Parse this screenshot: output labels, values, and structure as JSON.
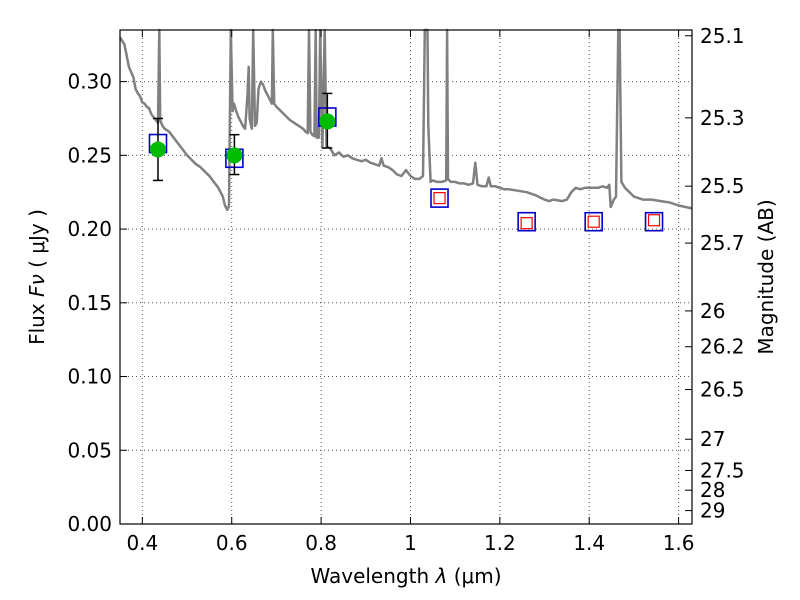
{
  "chart_data": {
    "type": "line",
    "xlabel": "Wavelength",
    "xlabel_symbol": "λ",
    "xlabel_unit": "(μm)",
    "ylabel": "Flux",
    "ylabel_symbol": "Fν",
    "ylabel_unit": "( μJy )",
    "y2label": "Magnitude (AB)",
    "xlim": [
      0.35,
      1.63
    ],
    "ylim": [
      0.0,
      0.335
    ],
    "x_ticks": [
      0.4,
      0.6,
      0.8,
      1.0,
      1.2,
      1.4,
      1.6
    ],
    "x_tick_labels": [
      "0.4",
      "0.6",
      "0.8",
      "1",
      "1.2",
      "1.4",
      "1.6"
    ],
    "y_ticks": [
      0.0,
      0.05,
      0.1,
      0.15,
      0.2,
      0.25,
      0.3
    ],
    "y_tick_labels": [
      "0.00",
      "0.05",
      "0.10",
      "0.15",
      "0.20",
      "0.25",
      "0.30"
    ],
    "y2_ticks": [
      {
        "flux": 0.3311,
        "label": "25.1"
      },
      {
        "flux": 0.2754,
        "label": "25.3"
      },
      {
        "flux": 0.2291,
        "label": "25.5"
      },
      {
        "flux": 0.1905,
        "label": "25.7"
      },
      {
        "flux": 0.1445,
        "label": "26"
      },
      {
        "flux": 0.1202,
        "label": "26.2"
      },
      {
        "flux": 0.0912,
        "label": "26.5"
      },
      {
        "flux": 0.0575,
        "label": "27"
      },
      {
        "flux": 0.0363,
        "label": "27.5"
      },
      {
        "flux": 0.0229,
        "label": "28"
      },
      {
        "flux": 0.0091,
        "label": "29"
      }
    ],
    "grid": true,
    "model_color": "#808080",
    "model_spectrum": [
      [
        0.35,
        0.33
      ],
      [
        0.36,
        0.325
      ],
      [
        0.37,
        0.31
      ],
      [
        0.38,
        0.303
      ],
      [
        0.385,
        0.295
      ],
      [
        0.39,
        0.292
      ],
      [
        0.395,
        0.29
      ],
      [
        0.4,
        0.286
      ],
      [
        0.405,
        0.285
      ],
      [
        0.41,
        0.283
      ],
      [
        0.415,
        0.282
      ],
      [
        0.42,
        0.278
      ],
      [
        0.425,
        0.276
      ],
      [
        0.43,
        0.274
      ],
      [
        0.435,
        0.272
      ],
      [
        0.438,
        0.4
      ],
      [
        0.44,
        0.274
      ],
      [
        0.445,
        0.27
      ],
      [
        0.45,
        0.268
      ],
      [
        0.46,
        0.266
      ],
      [
        0.47,
        0.262
      ],
      [
        0.48,
        0.258
      ],
      [
        0.49,
        0.254
      ],
      [
        0.5,
        0.25
      ],
      [
        0.51,
        0.247
      ],
      [
        0.52,
        0.244
      ],
      [
        0.53,
        0.242
      ],
      [
        0.54,
        0.239
      ],
      [
        0.55,
        0.236
      ],
      [
        0.56,
        0.232
      ],
      [
        0.57,
        0.228
      ],
      [
        0.58,
        0.222
      ],
      [
        0.585,
        0.216
      ],
      [
        0.59,
        0.213
      ],
      [
        0.594,
        0.216
      ],
      [
        0.598,
        0.4
      ],
      [
        0.602,
        0.28
      ],
      [
        0.605,
        0.285
      ],
      [
        0.61,
        0.28
      ],
      [
        0.615,
        0.276
      ],
      [
        0.62,
        0.273
      ],
      [
        0.625,
        0.27
      ],
      [
        0.63,
        0.268
      ],
      [
        0.635,
        0.29
      ],
      [
        0.638,
        0.31
      ],
      [
        0.64,
        0.275
      ],
      [
        0.645,
        0.268
      ],
      [
        0.648,
        0.4
      ],
      [
        0.652,
        0.27
      ],
      [
        0.656,
        0.272
      ],
      [
        0.66,
        0.295
      ],
      [
        0.665,
        0.3
      ],
      [
        0.67,
        0.298
      ],
      [
        0.675,
        0.294
      ],
      [
        0.68,
        0.291
      ],
      [
        0.685,
        0.288
      ],
      [
        0.69,
        0.285
      ],
      [
        0.692,
        0.4
      ],
      [
        0.695,
        0.285
      ],
      [
        0.7,
        0.283
      ],
      [
        0.71,
        0.28
      ],
      [
        0.72,
        0.277
      ],
      [
        0.73,
        0.274
      ],
      [
        0.74,
        0.272
      ],
      [
        0.75,
        0.27
      ],
      [
        0.76,
        0.268
      ],
      [
        0.765,
        0.266
      ],
      [
        0.77,
        0.265
      ],
      [
        0.773,
        0.4
      ],
      [
        0.776,
        0.266
      ],
      [
        0.78,
        0.264
      ],
      [
        0.785,
        0.263
      ],
      [
        0.788,
        0.4
      ],
      [
        0.79,
        0.262
      ],
      [
        0.795,
        0.262
      ],
      [
        0.798,
        0.4
      ],
      [
        0.803,
        0.255
      ],
      [
        0.808,
        0.4
      ],
      [
        0.812,
        0.256
      ],
      [
        0.82,
        0.255
      ],
      [
        0.83,
        0.25
      ],
      [
        0.84,
        0.252
      ],
      [
        0.85,
        0.249
      ],
      [
        0.86,
        0.25
      ],
      [
        0.87,
        0.248
      ],
      [
        0.88,
        0.247
      ],
      [
        0.89,
        0.246
      ],
      [
        0.9,
        0.247
      ],
      [
        0.91,
        0.245
      ],
      [
        0.92,
        0.244
      ],
      [
        0.93,
        0.243
      ],
      [
        0.935,
        0.248
      ],
      [
        0.94,
        0.243
      ],
      [
        0.95,
        0.242
      ],
      [
        0.96,
        0.24
      ],
      [
        0.97,
        0.237
      ],
      [
        0.98,
        0.236
      ],
      [
        0.99,
        0.24
      ],
      [
        1.0,
        0.236
      ],
      [
        1.01,
        0.234
      ],
      [
        1.02,
        0.234
      ],
      [
        1.028,
        0.236
      ],
      [
        1.032,
        0.4
      ],
      [
        1.035,
        0.4
      ],
      [
        1.038,
        0.4
      ],
      [
        1.04,
        0.27
      ],
      [
        1.045,
        0.232
      ],
      [
        1.05,
        0.233
      ],
      [
        1.06,
        0.232
      ],
      [
        1.07,
        0.232
      ],
      [
        1.08,
        0.233
      ],
      [
        1.082,
        0.4
      ],
      [
        1.084,
        0.234
      ],
      [
        1.09,
        0.232
      ],
      [
        1.1,
        0.232
      ],
      [
        1.11,
        0.231
      ],
      [
        1.12,
        0.231
      ],
      [
        1.13,
        0.23
      ],
      [
        1.14,
        0.231
      ],
      [
        1.145,
        0.245
      ],
      [
        1.15,
        0.23
      ],
      [
        1.16,
        0.229
      ],
      [
        1.17,
        0.229
      ],
      [
        1.175,
        0.235
      ],
      [
        1.18,
        0.229
      ],
      [
        1.19,
        0.229
      ],
      [
        1.2,
        0.228
      ],
      [
        1.21,
        0.227
      ],
      [
        1.22,
        0.227
      ],
      [
        1.24,
        0.226
      ],
      [
        1.26,
        0.225
      ],
      [
        1.28,
        0.223
      ],
      [
        1.3,
        0.22
      ],
      [
        1.31,
        0.219
      ],
      [
        1.32,
        0.22
      ],
      [
        1.34,
        0.219
      ],
      [
        1.35,
        0.22
      ],
      [
        1.36,
        0.225
      ],
      [
        1.37,
        0.228
      ],
      [
        1.38,
        0.227
      ],
      [
        1.39,
        0.228
      ],
      [
        1.4,
        0.228
      ],
      [
        1.42,
        0.228
      ],
      [
        1.43,
        0.229
      ],
      [
        1.44,
        0.228
      ],
      [
        1.445,
        0.23
      ],
      [
        1.448,
        0.215
      ],
      [
        1.455,
        0.22
      ],
      [
        1.46,
        0.222
      ],
      [
        1.465,
        0.4
      ],
      [
        1.468,
        0.4
      ],
      [
        1.472,
        0.232
      ],
      [
        1.48,
        0.228
      ],
      [
        1.5,
        0.222
      ],
      [
        1.52,
        0.22
      ],
      [
        1.54,
        0.22
      ],
      [
        1.56,
        0.219
      ],
      [
        1.58,
        0.218
      ],
      [
        1.6,
        0.216
      ],
      [
        1.63,
        0.214
      ]
    ],
    "observed": [
      {
        "x": 0.435,
        "flux": 0.254,
        "err_low": 0.233,
        "err_high": 0.275
      },
      {
        "x": 0.606,
        "flux": 0.25,
        "err_low": 0.237,
        "err_high": 0.264
      },
      {
        "x": 0.814,
        "flux": 0.273,
        "err_low": 0.255,
        "err_high": 0.292
      }
    ],
    "observed_color": "#00bb00",
    "model_box_x": [
      0.435,
      0.606,
      0.814,
      1.065,
      1.26,
      1.41,
      1.545
    ],
    "model_box_flux": [
      0.258,
      0.248,
      0.276,
      0.221,
      0.205,
      0.205,
      0.205
    ],
    "model_box_color": "#0000cc",
    "upper_limit_x": [
      1.065,
      1.26,
      1.41,
      1.545
    ],
    "upper_limit_flux": [
      0.221,
      0.204,
      0.205,
      0.206
    ],
    "upper_limit_color": "#ff0000"
  }
}
